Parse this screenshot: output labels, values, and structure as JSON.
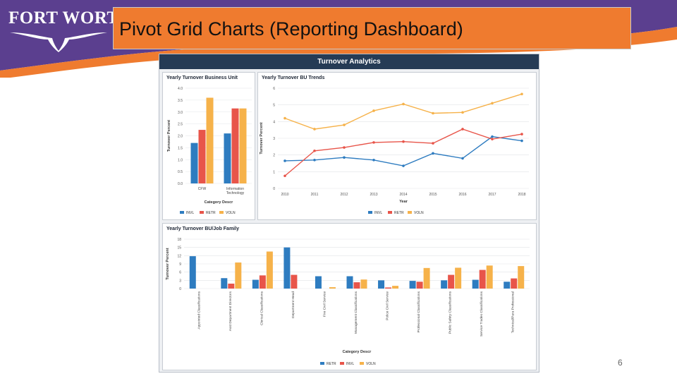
{
  "slide": {
    "logo_text": "FORT WORTH",
    "logo_mark": "®",
    "title": "Pivot Grid Charts (Reporting Dashboard)",
    "page_number": "6"
  },
  "dashboard": {
    "header": "Turnover Analytics"
  },
  "colors": {
    "purple": "#5b3f8f",
    "orange": "#ef7b2f",
    "blue": "#2e7cc0",
    "red": "#e8554a",
    "yellow": "#f6b24a",
    "header": "#253b55"
  },
  "chart_data": [
    {
      "id": "bu",
      "type": "bar",
      "title": "Yearly Turnover Business Unit",
      "xlabel": "Category Descr",
      "ylabel": "Turnover Percent",
      "ylim": [
        0,
        4.0
      ],
      "yticks": [
        "0.0",
        "0.5",
        "1.0",
        "1.5",
        "2.0",
        "2.5",
        "3.0",
        "3.5",
        "4.0"
      ],
      "categories": [
        "CFW",
        "Information Technology"
      ],
      "category_lines": [
        [
          "CFW"
        ],
        [
          "Information",
          "Technology"
        ]
      ],
      "series": [
        {
          "name": "INVL",
          "color": "#2e7cc0",
          "values": [
            1.7,
            2.1
          ]
        },
        {
          "name": "RETR",
          "color": "#e8554a",
          "values": [
            2.25,
            3.15
          ]
        },
        {
          "name": "VOLN",
          "color": "#f6b24a",
          "values": [
            3.6,
            3.15
          ]
        }
      ],
      "legend": [
        "INVL",
        "RETR",
        "VOLN"
      ]
    },
    {
      "id": "trend",
      "type": "line",
      "title": "Yearly Turnover BU Trends",
      "xlabel": "Year",
      "ylabel": "Turnover Percent",
      "ylim": [
        0,
        6
      ],
      "yticks": [
        "0",
        "1",
        "2",
        "3",
        "4",
        "5",
        "6"
      ],
      "x": [
        "2010",
        "2011",
        "2012",
        "2013",
        "2014",
        "2015",
        "2016",
        "2017",
        "2018"
      ],
      "series": [
        {
          "name": "INVL",
          "color": "#2e7cc0",
          "values": [
            1.65,
            1.7,
            1.85,
            1.7,
            1.35,
            2.1,
            1.8,
            3.1,
            2.85
          ]
        },
        {
          "name": "RETR",
          "color": "#e8554a",
          "values": [
            0.75,
            2.25,
            2.45,
            2.75,
            2.8,
            2.7,
            3.55,
            2.95,
            3.25
          ]
        },
        {
          "name": "VOLN",
          "color": "#f6b24a",
          "values": [
            4.2,
            3.55,
            3.8,
            4.65,
            5.05,
            4.5,
            4.55,
            5.1,
            5.65
          ]
        }
      ],
      "legend": [
        "INVL",
        "RETR",
        "VOLN"
      ]
    },
    {
      "id": "jobfam",
      "type": "bar",
      "title": "Yearly Turnover BU/Job Family",
      "xlabel": "Category Descr",
      "ylabel": "Turnover Percent",
      "ylim": [
        0,
        18
      ],
      "yticks": [
        "0",
        "3",
        "6",
        "9",
        "12",
        "15",
        "18"
      ],
      "categories": [
        "Appointed Classifications",
        "Asst Department Directors",
        "Clerical Classifications",
        "Department Head",
        "Fire Civil Service",
        "Management Classifications",
        "Police Civil Service",
        "Professional Classifications",
        "Public Safety Classifications",
        "Service Trades Classifications",
        "Technical/Para Professional"
      ],
      "series": [
        {
          "name": "RETR",
          "color": "#2e7cc0",
          "values": [
            11.8,
            3.8,
            3.2,
            15.0,
            4.5,
            4.5,
            3.0,
            2.8,
            3.0,
            3.2,
            2.5
          ]
        },
        {
          "name": "INVL",
          "color": "#e8554a",
          "values": [
            0,
            1.8,
            4.8,
            5.0,
            0,
            2.3,
            0.4,
            2.5,
            5.0,
            6.8,
            3.7
          ]
        },
        {
          "name": "VOLN",
          "color": "#f6b24a",
          "values": [
            0,
            9.5,
            13.5,
            0,
            0.5,
            3.3,
            1.0,
            7.5,
            7.6,
            8.4,
            8.2
          ]
        }
      ],
      "legend": [
        "RETR",
        "INVL",
        "VOLN"
      ]
    }
  ]
}
